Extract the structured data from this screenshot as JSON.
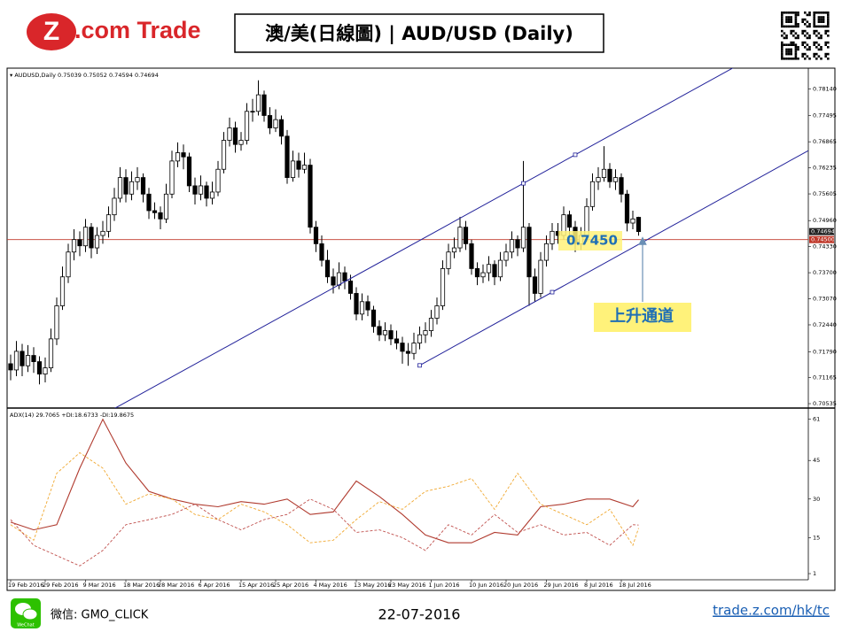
{
  "header": {
    "logo_mark": "Z",
    "logo_text": ".com Trade",
    "title": "澳/美(日線圖) | AUD/USD (Daily)"
  },
  "chart_data": [
    {
      "type": "candlestick",
      "symbol": "AUDUSD,Daily",
      "up_color": "#ffffff",
      "down_color": "#000000",
      "ylim": [
        0.7045,
        0.7858
      ],
      "yticks": [
        {
          "value": 0.7814,
          "label": "0.78140"
        },
        {
          "value": 0.77495,
          "label": "0.77495"
        },
        {
          "value": 0.76865,
          "label": "0.76865"
        },
        {
          "value": 0.76235,
          "label": "0.76235"
        },
        {
          "value": 0.75605,
          "label": "0.75605"
        },
        {
          "value": 0.7496,
          "label": "0.74960"
        },
        {
          "value": 0.7433,
          "label": "0.74330"
        },
        {
          "value": 0.737,
          "label": "0.73700"
        },
        {
          "value": 0.7307,
          "label": "0.73070"
        },
        {
          "value": 0.7244,
          "label": "0.72440"
        },
        {
          "value": 0.7179,
          "label": "0.71790"
        },
        {
          "value": 0.71165,
          "label": "0.71165"
        },
        {
          "value": 0.70535,
          "label": "0.70535"
        }
      ],
      "categories": [
        "19 Feb 2016",
        null,
        null,
        null,
        null,
        null,
        "29 Feb 2016",
        null,
        null,
        null,
        null,
        null,
        null,
        "9 Mar 2016",
        null,
        null,
        null,
        null,
        null,
        null,
        "18 Mar 2016",
        null,
        null,
        null,
        null,
        null,
        "28 Mar 2016",
        null,
        null,
        null,
        null,
        null,
        null,
        "6 Apr 2016",
        null,
        null,
        null,
        null,
        null,
        null,
        "15 Apr 2016",
        null,
        null,
        null,
        null,
        null,
        "25 Apr 2016",
        null,
        null,
        null,
        null,
        null,
        null,
        "4 May 2016",
        null,
        null,
        null,
        null,
        null,
        null,
        "13 May 2016",
        null,
        null,
        null,
        null,
        null,
        "23 May 2016",
        null,
        null,
        null,
        null,
        null,
        null,
        "1 Jun 2016",
        null,
        null,
        null,
        null,
        null,
        null,
        "10 Jun 2016",
        null,
        null,
        null,
        null,
        null,
        "20 Jun 2016",
        null,
        null,
        null,
        null,
        null,
        null,
        "29 Jun 2016",
        null,
        null,
        null,
        null,
        null,
        null,
        "8 Jul 2016",
        null,
        null,
        null,
        null,
        null,
        "18 Jul 2016",
        null,
        null,
        null
      ],
      "ohlc": [
        [
          0.715,
          0.7172,
          0.711,
          0.7135
        ],
        [
          0.7135,
          0.7205,
          0.712,
          0.718
        ],
        [
          0.718,
          0.7198,
          0.712,
          0.7145
        ],
        [
          0.7145,
          0.7195,
          0.713,
          0.717
        ],
        [
          0.717,
          0.719,
          0.7128,
          0.7155
        ],
        [
          0.7155,
          0.7168,
          0.71,
          0.7125
        ],
        [
          0.7125,
          0.7165,
          0.7105,
          0.714
        ],
        [
          0.714,
          0.7235,
          0.713,
          0.721
        ],
        [
          0.721,
          0.731,
          0.7195,
          0.729
        ],
        [
          0.729,
          0.7385,
          0.728,
          0.736
        ],
        [
          0.736,
          0.744,
          0.7345,
          0.742
        ],
        [
          0.742,
          0.7475,
          0.74,
          0.745
        ],
        [
          0.745,
          0.747,
          0.741,
          0.7435
        ],
        [
          0.7435,
          0.75,
          0.742,
          0.748
        ],
        [
          0.748,
          0.749,
          0.7405,
          0.743
        ],
        [
          0.743,
          0.748,
          0.7415,
          0.746
        ],
        [
          0.746,
          0.7495,
          0.744,
          0.747
        ],
        [
          0.747,
          0.753,
          0.7455,
          0.751
        ],
        [
          0.751,
          0.7575,
          0.7495,
          0.755
        ],
        [
          0.755,
          0.7625,
          0.754,
          0.76
        ],
        [
          0.76,
          0.762,
          0.754,
          0.756
        ],
        [
          0.756,
          0.7615,
          0.7545,
          0.759
        ],
        [
          0.759,
          0.7625,
          0.757,
          0.76
        ],
        [
          0.76,
          0.761,
          0.754,
          0.756
        ],
        [
          0.756,
          0.7575,
          0.75,
          0.752
        ],
        [
          0.752,
          0.754,
          0.75,
          0.7515
        ],
        [
          0.7515,
          0.753,
          0.7475,
          0.75
        ],
        [
          0.75,
          0.7585,
          0.749,
          0.756
        ],
        [
          0.756,
          0.7665,
          0.755,
          0.764
        ],
        [
          0.764,
          0.7685,
          0.7625,
          0.766
        ],
        [
          0.766,
          0.768,
          0.762,
          0.765
        ],
        [
          0.765,
          0.766,
          0.7565,
          0.758
        ],
        [
          0.758,
          0.76,
          0.7535,
          0.756
        ],
        [
          0.756,
          0.7605,
          0.7545,
          0.758
        ],
        [
          0.758,
          0.759,
          0.753,
          0.755
        ],
        [
          0.755,
          0.759,
          0.7535,
          0.7565
        ],
        [
          0.7565,
          0.764,
          0.7555,
          0.762
        ],
        [
          0.762,
          0.771,
          0.761,
          0.769
        ],
        [
          0.769,
          0.7745,
          0.7675,
          0.772
        ],
        [
          0.772,
          0.7735,
          0.766,
          0.768
        ],
        [
          0.768,
          0.771,
          0.7665,
          0.769
        ],
        [
          0.769,
          0.778,
          0.768,
          0.776
        ],
        [
          0.776,
          0.779,
          0.7735,
          0.776
        ],
        [
          0.776,
          0.7835,
          0.775,
          0.78
        ],
        [
          0.78,
          0.781,
          0.7735,
          0.775
        ],
        [
          0.775,
          0.777,
          0.7705,
          0.772
        ],
        [
          0.772,
          0.7765,
          0.771,
          0.774
        ],
        [
          0.774,
          0.775,
          0.768,
          0.77
        ],
        [
          0.77,
          0.7715,
          0.7585,
          0.76
        ],
        [
          0.76,
          0.7665,
          0.759,
          0.764
        ],
        [
          0.764,
          0.766,
          0.76,
          0.762
        ],
        [
          0.762,
          0.766,
          0.761,
          0.763
        ],
        [
          0.763,
          0.7645,
          0.7465,
          0.748
        ],
        [
          0.748,
          0.7495,
          0.742,
          0.744
        ],
        [
          0.744,
          0.746,
          0.7385,
          0.74
        ],
        [
          0.74,
          0.7425,
          0.7345,
          0.736
        ],
        [
          0.736,
          0.738,
          0.732,
          0.734
        ],
        [
          0.734,
          0.7395,
          0.733,
          0.737
        ],
        [
          0.737,
          0.7385,
          0.733,
          0.735
        ],
        [
          0.735,
          0.7365,
          0.7305,
          0.732
        ],
        [
          0.732,
          0.7335,
          0.7255,
          0.727
        ],
        [
          0.727,
          0.732,
          0.7255,
          0.73
        ],
        [
          0.73,
          0.7315,
          0.7265,
          0.728
        ],
        [
          0.728,
          0.729,
          0.7225,
          0.724
        ],
        [
          0.724,
          0.7255,
          0.7205,
          0.722
        ],
        [
          0.722,
          0.725,
          0.7205,
          0.723
        ],
        [
          0.723,
          0.7245,
          0.7195,
          0.721
        ],
        [
          0.721,
          0.723,
          0.7185,
          0.72
        ],
        [
          0.72,
          0.7215,
          0.715,
          0.718
        ],
        [
          0.718,
          0.72,
          0.7145,
          0.7175
        ],
        [
          0.7175,
          0.7225,
          0.716,
          0.72
        ],
        [
          0.72,
          0.724,
          0.7185,
          0.722
        ],
        [
          0.722,
          0.725,
          0.72,
          0.723
        ],
        [
          0.723,
          0.728,
          0.7215,
          0.726
        ],
        [
          0.726,
          0.731,
          0.7245,
          0.729
        ],
        [
          0.729,
          0.74,
          0.728,
          0.738
        ],
        [
          0.738,
          0.744,
          0.7365,
          0.742
        ],
        [
          0.742,
          0.7455,
          0.7405,
          0.743
        ],
        [
          0.743,
          0.7505,
          0.742,
          0.748
        ],
        [
          0.748,
          0.7495,
          0.7425,
          0.744
        ],
        [
          0.744,
          0.745,
          0.7365,
          0.738
        ],
        [
          0.738,
          0.7395,
          0.734,
          0.736
        ],
        [
          0.736,
          0.739,
          0.7345,
          0.737
        ],
        [
          0.737,
          0.741,
          0.735,
          0.739
        ],
        [
          0.739,
          0.74,
          0.734,
          0.736
        ],
        [
          0.736,
          0.742,
          0.735,
          0.74
        ],
        [
          0.74,
          0.744,
          0.7385,
          0.742
        ],
        [
          0.742,
          0.747,
          0.7405,
          0.745
        ],
        [
          0.745,
          0.746,
          0.741,
          0.743
        ],
        [
          0.743,
          0.764,
          0.742,
          0.748
        ],
        [
          0.748,
          0.749,
          0.729,
          0.736
        ],
        [
          0.736,
          0.738,
          0.73,
          0.732
        ],
        [
          0.732,
          0.742,
          0.731,
          0.74
        ],
        [
          0.74,
          0.746,
          0.7385,
          0.744
        ],
        [
          0.744,
          0.749,
          0.7425,
          0.747
        ],
        [
          0.747,
          0.749,
          0.744,
          0.746
        ],
        [
          0.746,
          0.753,
          0.745,
          0.751
        ],
        [
          0.751,
          0.752,
          0.746,
          0.748
        ],
        [
          0.748,
          0.7495,
          0.742,
          0.744
        ],
        [
          0.744,
          0.748,
          0.7425,
          0.746
        ],
        [
          0.746,
          0.755,
          0.7445,
          0.753
        ],
        [
          0.753,
          0.761,
          0.752,
          0.759
        ],
        [
          0.759,
          0.7625,
          0.757,
          0.76
        ],
        [
          0.76,
          0.7676,
          0.759,
          0.762
        ],
        [
          0.762,
          0.7635,
          0.7575,
          0.759
        ],
        [
          0.759,
          0.762,
          0.757,
          0.76
        ],
        [
          0.76,
          0.761,
          0.754,
          0.756
        ],
        [
          0.756,
          0.757,
          0.747,
          0.749
        ],
        [
          0.749,
          0.752,
          0.7475,
          0.75
        ],
        [
          0.75039,
          0.75052,
          0.74594,
          0.74694
        ]
      ],
      "channel_lines": [
        {
          "color": "#22229a",
          "x": [
            89,
            98
          ],
          "y": [
            0.7586,
            0.7655
          ],
          "extend": "both"
        },
        {
          "color": "#22229a",
          "x": [
            71,
            94
          ],
          "y": [
            0.7146,
            0.7323
          ],
          "extend": "right"
        }
      ],
      "hline": {
        "value": 0.745,
        "label": "0.74500",
        "color": "#c0392b"
      },
      "last_price": {
        "value": 0.74694,
        "label": "0.74694"
      },
      "annotations": [
        "0.7450",
        "上升通道"
      ]
    },
    {
      "type": "line",
      "title": "ADX(14)",
      "ylim": [
        -1.4,
        64
      ],
      "yticks": [
        61,
        45,
        30,
        15,
        1
      ],
      "x": [
        0,
        4,
        8,
        12,
        16,
        20,
        24,
        28,
        32,
        36,
        40,
        44,
        48,
        52,
        56,
        60,
        64,
        68,
        72,
        76,
        80,
        84,
        88,
        92,
        96,
        100,
        104,
        108,
        109
      ],
      "series": [
        {
          "name": "ADX(14)",
          "color": "#b03a2e",
          "dash": "solid",
          "values": [
            21,
            18,
            20,
            42,
            61,
            44,
            33,
            30,
            28,
            27,
            29,
            28,
            30,
            24,
            25,
            37,
            31,
            24,
            16,
            13,
            13,
            17,
            16,
            27,
            28,
            30,
            30,
            27,
            29.7065
          ]
        },
        {
          "name": "+DI:",
          "color": "#f0a830",
          "dash": "dashed",
          "values": [
            20,
            14,
            40,
            48,
            42,
            28,
            32,
            30,
            24,
            22,
            28,
            25,
            20,
            13,
            14,
            22,
            29,
            26,
            33,
            35,
            38,
            26,
            40,
            28,
            24,
            20,
            26,
            12,
            18.6733
          ]
        },
        {
          "name": "-DI:",
          "color": "#c0504d",
          "dash": "dashed",
          "values": [
            22,
            12,
            8,
            4,
            10,
            20,
            22,
            24,
            28,
            22,
            18,
            22,
            24,
            30,
            26,
            17,
            18,
            15,
            10,
            20,
            16,
            24,
            17,
            20,
            16,
            17,
            12,
            20,
            19.8675
          ]
        }
      ]
    }
  ],
  "footer": {
    "wechat": "WeChat",
    "contact": "微信: GMO_CLICK",
    "date": "22-07-2016",
    "url": "trade.z.com/hk/tc"
  }
}
